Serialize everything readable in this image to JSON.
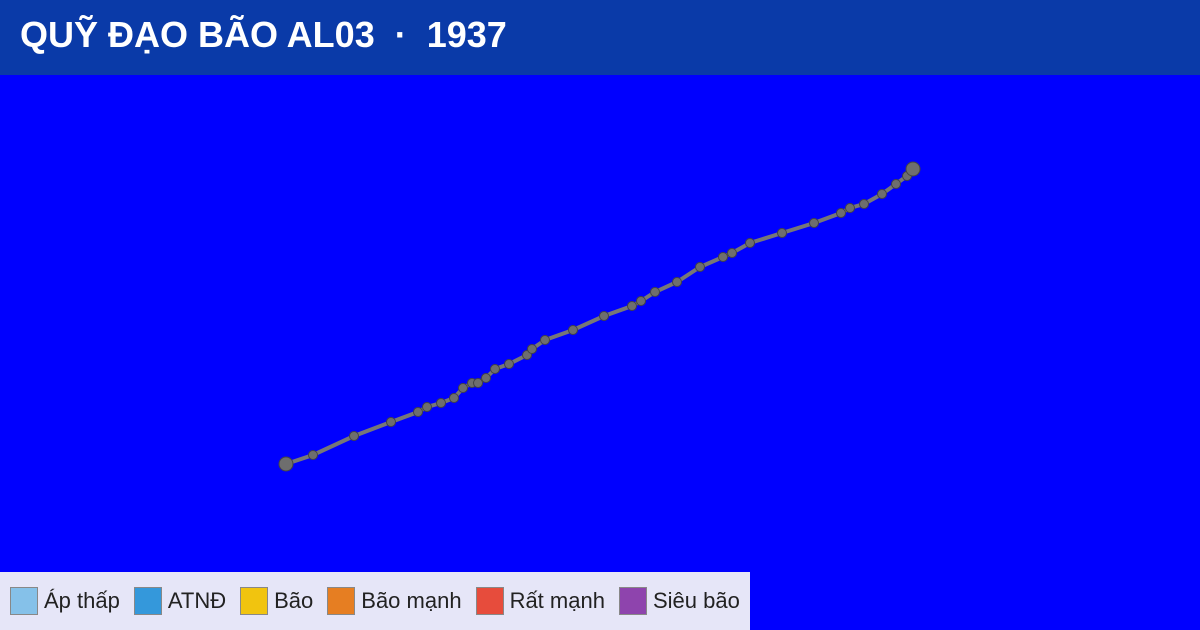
{
  "header": {
    "title": "QUỸ ĐẠO BÃO AL03  ·  1937"
  },
  "legend": [
    {
      "label": "Áp thấp",
      "color": "#85c1e9"
    },
    {
      "label": "ATNĐ",
      "color": "#3498db"
    },
    {
      "label": "Bão",
      "color": "#f1c40f"
    },
    {
      "label": "Bão mạnh",
      "color": "#e67e22"
    },
    {
      "label": "Rất mạnh",
      "color": "#e74c3c"
    },
    {
      "label": "Siêu bão",
      "color": "#8e44ad"
    }
  ]
}
